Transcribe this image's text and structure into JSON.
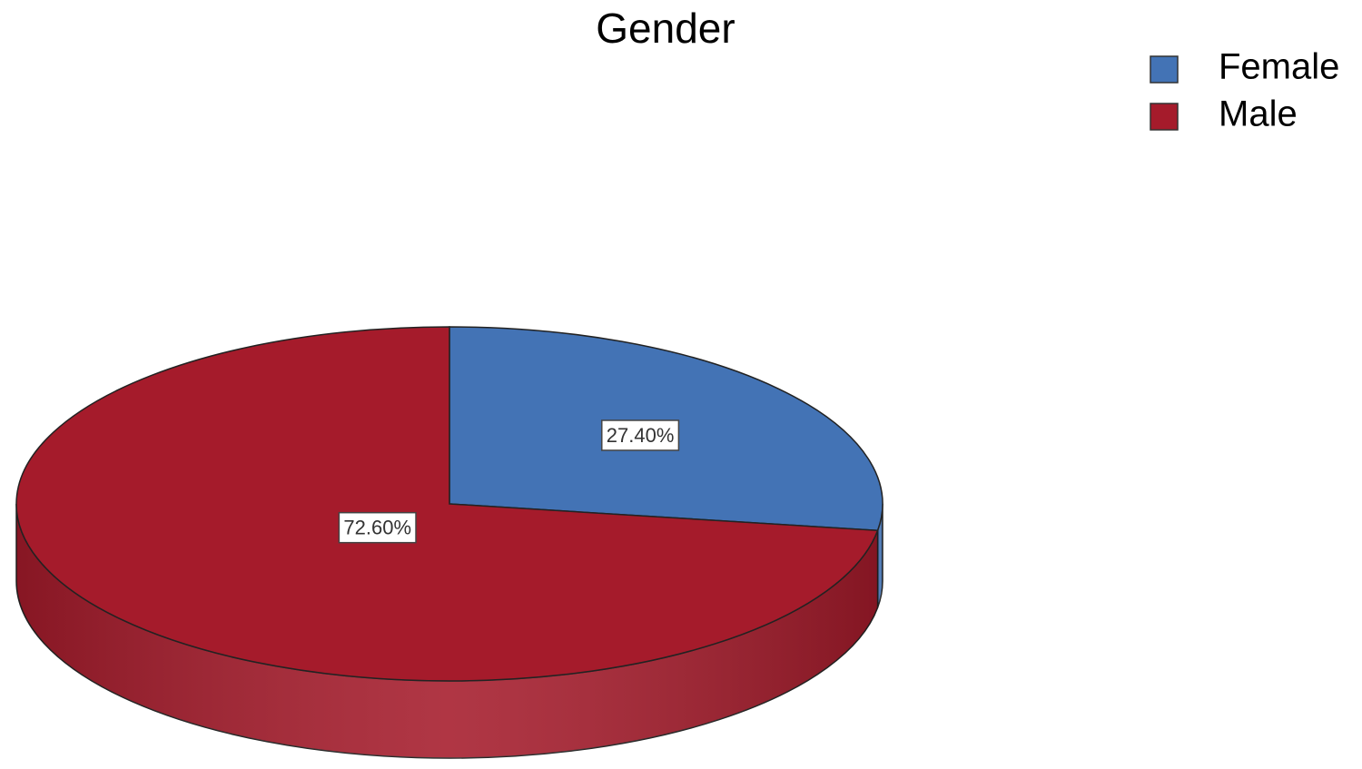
{
  "chart_data": {
    "type": "pie",
    "title": "Gender",
    "categories": [
      "Female",
      "Male"
    ],
    "values": [
      27.4,
      72.6
    ],
    "value_labels": [
      "27.40%",
      "72.60%"
    ],
    "colors": [
      "#4373b5",
      "#a51b2b"
    ],
    "legend": "top-right"
  }
}
